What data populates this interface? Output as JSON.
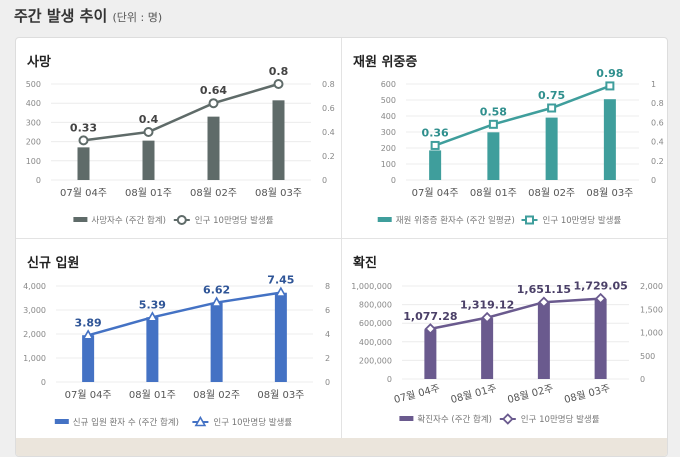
{
  "header": {
    "title": "주간 발생 추이",
    "unit": "(단위 : 명)"
  },
  "chart_data": [
    {
      "type": "bar+line",
      "title": "사망",
      "color": "#5f6b69",
      "marker": "circle",
      "categories": [
        "07월 04주",
        "08월 01주",
        "08월 02주",
        "08월 03주"
      ],
      "bar": {
        "name": "사망자수 (주간 합계)",
        "values": [
          170,
          205,
          330,
          415
        ],
        "ylim": [
          0,
          500
        ],
        "ticks": [
          "0",
          "100",
          "200",
          "300",
          "400",
          "500"
        ]
      },
      "line": {
        "name": "인구 10만명당 발생률",
        "values": [
          0.33,
          0.4,
          0.64,
          0.8
        ],
        "labels": [
          "0.33",
          "0.4",
          "0.64",
          "0.8"
        ],
        "ylim": [
          0,
          0.8
        ],
        "ticks": [
          "0",
          "0.2",
          "0.4",
          "0.6",
          "0.8"
        ]
      },
      "label_color": "#444444"
    },
    {
      "type": "bar+line",
      "title": "재원 위중증",
      "color": "#3f9e9c",
      "marker": "square",
      "categories": [
        "07월 04주",
        "08월 01주",
        "08월 02주",
        "08월 03주"
      ],
      "bar": {
        "name": "재원 위중증 환자수 (주간 일평균)",
        "values": [
          185,
          298,
          390,
          505
        ],
        "ylim": [
          0,
          600
        ],
        "ticks": [
          "0",
          "100",
          "200",
          "300",
          "400",
          "500",
          "600"
        ]
      },
      "line": {
        "name": "인구 10만명당 발생률",
        "values": [
          0.36,
          0.58,
          0.75,
          0.98
        ],
        "labels": [
          "0.36",
          "0.58",
          "0.75",
          "0.98"
        ],
        "ylim": [
          0,
          1
        ],
        "ticks": [
          "0",
          "0.2",
          "0.4",
          "0.6",
          "0.8",
          "1"
        ]
      },
      "label_color": "#2f8f8d"
    },
    {
      "type": "bar+line",
      "title": "신규 입원",
      "color": "#4472c4",
      "marker": "triangle",
      "categories": [
        "07월 04주",
        "08월 01주",
        "08월 02주",
        "08월 03주"
      ],
      "bar": {
        "name": "신규 입원 환자 수 (주간 합계)",
        "values": [
          1950,
          2700,
          3300,
          3720
        ],
        "ylim": [
          0,
          4000
        ],
        "ticks": [
          "0",
          "1,000",
          "2,000",
          "3,000",
          "4,000"
        ]
      },
      "line": {
        "name": "인구 10만명당 발생률",
        "values": [
          3.89,
          5.39,
          6.62,
          7.45
        ],
        "labels": [
          "3.89",
          "5.39",
          "6.62",
          "7.45"
        ],
        "ylim": [
          0,
          8
        ],
        "ticks": [
          "0",
          "2",
          "4",
          "6",
          "8"
        ]
      },
      "label_color": "#2f5597"
    },
    {
      "type": "bar+line",
      "title": "확진",
      "color": "#6a5a8e",
      "marker": "diamond",
      "categories": [
        "07월 04주",
        "08월 01주",
        "08월 02주",
        "08월 03주"
      ],
      "bar": {
        "name": "확진자수 (주간 합계)",
        "values": [
          535000,
          655000,
          825000,
          860000
        ],
        "ylim": [
          0,
          1000000
        ],
        "ticks": [
          "0",
          "200,000",
          "400,000",
          "600,000",
          "800,000",
          "1,000,000"
        ]
      },
      "line": {
        "name": "인구 10만명당 발생률",
        "values": [
          1077.28,
          1319.12,
          1651.15,
          1729.05
        ],
        "labels": [
          "1,077.28",
          "1,319.12",
          "1,651.15",
          "1,729.05"
        ],
        "ylim": [
          0,
          2000
        ],
        "ticks": [
          "0",
          "500",
          "1,000",
          "1,500",
          "2,000"
        ]
      },
      "label_color": "#4b4068"
    }
  ]
}
